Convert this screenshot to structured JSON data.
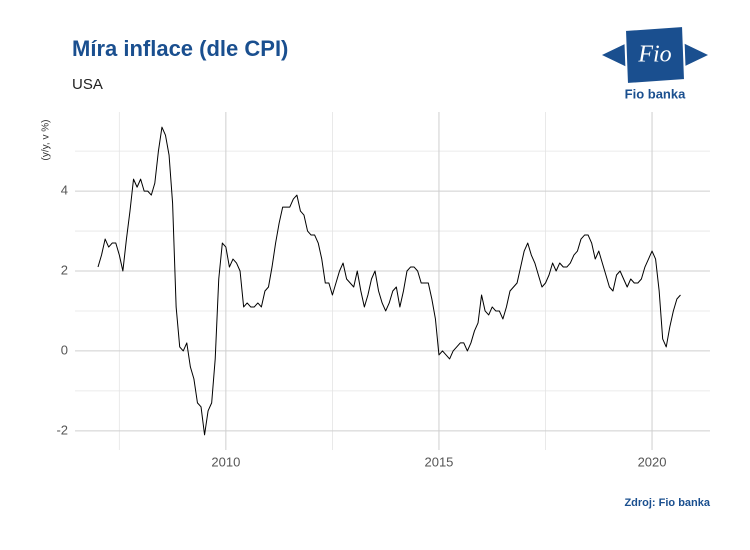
{
  "chart_data": {
    "type": "line",
    "title": "Míra inflace (dle CPI)",
    "subtitle": "USA",
    "y_label": "(y/y, v %)",
    "source": "Zdroj: Fio banka",
    "logo_text": "Fio",
    "logo_caption": "Fio banka",
    "color": "#000000",
    "grid": true,
    "xlim": [
      2006.46,
      2021.36
    ],
    "xticks": [
      2010,
      2015,
      2020
    ],
    "x_minor_ticks": [
      2007.5,
      2012.5,
      2017.5
    ],
    "ylim": [
      -2.48,
      5.98
    ],
    "yticks": [
      -2,
      0,
      2,
      4
    ],
    "y_minor_ticks": [
      -1,
      1,
      3,
      5
    ],
    "x": [
      2007,
      2007.083,
      2007.167,
      2007.25,
      2007.333,
      2007.417,
      2007.5,
      2007.583,
      2007.667,
      2007.75,
      2007.833,
      2007.917,
      2008,
      2008.083,
      2008.167,
      2008.25,
      2008.333,
      2008.417,
      2008.5,
      2008.583,
      2008.667,
      2008.75,
      2008.833,
      2008.917,
      2009,
      2009.083,
      2009.167,
      2009.25,
      2009.333,
      2009.417,
      2009.5,
      2009.583,
      2009.667,
      2009.75,
      2009.833,
      2009.917,
      2010,
      2010.083,
      2010.167,
      2010.25,
      2010.333,
      2010.417,
      2010.5,
      2010.583,
      2010.667,
      2010.75,
      2010.833,
      2010.917,
      2011,
      2011.083,
      2011.167,
      2011.25,
      2011.333,
      2011.417,
      2011.5,
      2011.583,
      2011.667,
      2011.75,
      2011.833,
      2011.917,
      2012,
      2012.083,
      2012.167,
      2012.25,
      2012.333,
      2012.417,
      2012.5,
      2012.583,
      2012.667,
      2012.75,
      2012.833,
      2012.917,
      2013,
      2013.083,
      2013.167,
      2013.25,
      2013.333,
      2013.417,
      2013.5,
      2013.583,
      2013.667,
      2013.75,
      2013.833,
      2013.917,
      2014,
      2014.083,
      2014.167,
      2014.25,
      2014.333,
      2014.417,
      2014.5,
      2014.583,
      2014.667,
      2014.75,
      2014.833,
      2014.917,
      2015,
      2015.083,
      2015.167,
      2015.25,
      2015.333,
      2015.417,
      2015.5,
      2015.583,
      2015.667,
      2015.75,
      2015.833,
      2015.917,
      2016,
      2016.083,
      2016.167,
      2016.25,
      2016.333,
      2016.417,
      2016.5,
      2016.583,
      2016.667,
      2016.75,
      2016.833,
      2016.917,
      2017,
      2017.083,
      2017.167,
      2017.25,
      2017.333,
      2017.417,
      2017.5,
      2017.583,
      2017.667,
      2017.75,
      2017.833,
      2017.917,
      2018,
      2018.083,
      2018.167,
      2018.25,
      2018.333,
      2018.417,
      2018.5,
      2018.583,
      2018.667,
      2018.75,
      2018.833,
      2018.917,
      2019,
      2019.083,
      2019.167,
      2019.25,
      2019.333,
      2019.417,
      2019.5,
      2019.583,
      2019.667,
      2019.75,
      2019.833,
      2019.917,
      2020,
      2020.083,
      2020.167,
      2020.25,
      2020.333,
      2020.417,
      2020.5,
      2020.583,
      2020.667
    ],
    "values": [
      2.1,
      2.4,
      2.8,
      2.6,
      2.7,
      2.7,
      2.4,
      2.0,
      2.8,
      3.5,
      4.3,
      4.1,
      4.3,
      4.0,
      4.0,
      3.9,
      4.2,
      5.0,
      5.6,
      5.4,
      4.9,
      3.7,
      1.1,
      0.1,
      0.0,
      0.2,
      -0.4,
      -0.7,
      -1.3,
      -1.4,
      -2.1,
      -1.5,
      -1.3,
      -0.2,
      1.8,
      2.7,
      2.6,
      2.1,
      2.3,
      2.2,
      2.0,
      1.1,
      1.2,
      1.1,
      1.1,
      1.2,
      1.1,
      1.5,
      1.6,
      2.1,
      2.7,
      3.2,
      3.6,
      3.6,
      3.6,
      3.8,
      3.9,
      3.5,
      3.4,
      3.0,
      2.9,
      2.9,
      2.7,
      2.3,
      1.7,
      1.7,
      1.4,
      1.7,
      2.0,
      2.2,
      1.8,
      1.7,
      1.6,
      2.0,
      1.5,
      1.1,
      1.4,
      1.8,
      2.0,
      1.5,
      1.2,
      1.0,
      1.2,
      1.5,
      1.6,
      1.1,
      1.5,
      2.0,
      2.1,
      2.1,
      2.0,
      1.7,
      1.7,
      1.7,
      1.3,
      0.8,
      -0.1,
      0.0,
      -0.1,
      -0.2,
      0.0,
      0.1,
      0.2,
      0.2,
      0.0,
      0.2,
      0.5,
      0.7,
      1.4,
      1.0,
      0.9,
      1.1,
      1.0,
      1.0,
      0.8,
      1.1,
      1.5,
      1.6,
      1.7,
      2.1,
      2.5,
      2.7,
      2.4,
      2.2,
      1.9,
      1.6,
      1.7,
      1.9,
      2.2,
      2.0,
      2.2,
      2.1,
      2.1,
      2.2,
      2.4,
      2.5,
      2.8,
      2.9,
      2.9,
      2.7,
      2.3,
      2.5,
      2.2,
      1.9,
      1.6,
      1.5,
      1.9,
      2.0,
      1.8,
      1.6,
      1.8,
      1.7,
      1.7,
      1.8,
      2.1,
      2.3,
      2.5,
      2.3,
      1.5,
      0.3,
      0.1,
      0.6,
      1.0,
      1.3,
      1.4
    ]
  }
}
